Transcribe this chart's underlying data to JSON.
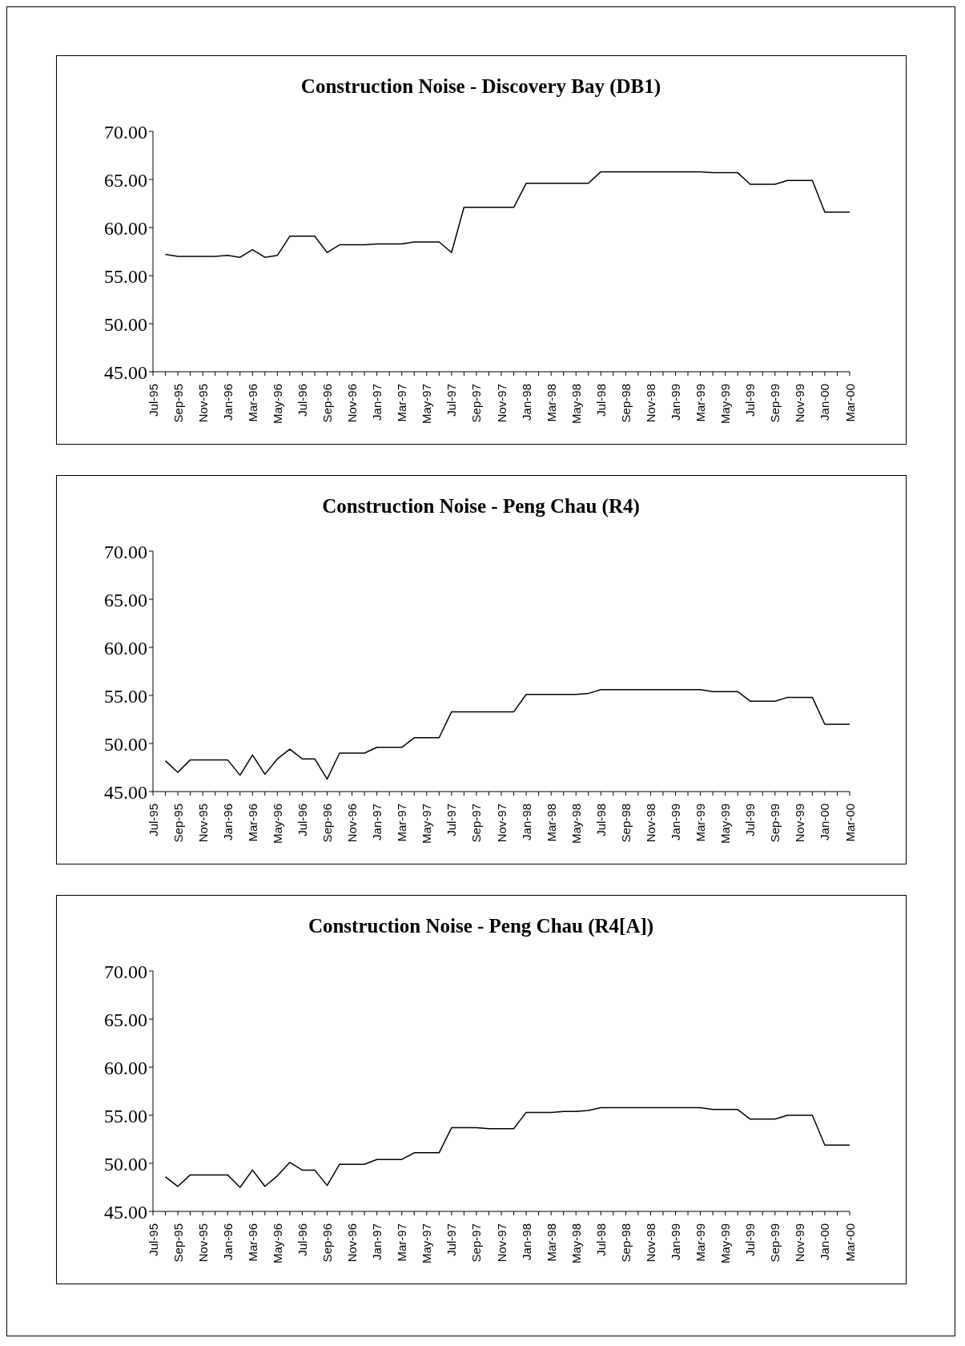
{
  "chart_data": [
    {
      "type": "line",
      "title": "Construction Noise -  Discovery Bay  (DB1)",
      "categories": [
        "Jul-95",
        null,
        "Sep-95",
        null,
        "Nov-95",
        null,
        "Jan-96",
        null,
        "Mar-96",
        null,
        "May-96",
        null,
        "Jul-96",
        null,
        "Sep-96",
        null,
        "Nov-96",
        null,
        "Jan-97",
        null,
        "Mar-97",
        null,
        "May-97",
        null,
        "Jul-97",
        null,
        "Sep-97",
        null,
        "Nov-97",
        null,
        "Jan-98",
        null,
        "Mar-98",
        null,
        "May-98",
        null,
        "Jul-98",
        null,
        "Sep-98",
        null,
        "Nov-98",
        null,
        "Jan-99",
        null,
        "Mar-99",
        null,
        "May-99",
        null,
        "Jul-99",
        null,
        "Sep-99",
        null,
        "Nov-99",
        null,
        "Jan-00",
        null,
        "Mar-00"
      ],
      "values": [
        null,
        57.2,
        57.0,
        57.0,
        57.0,
        57.0,
        57.1,
        56.9,
        57.7,
        56.9,
        57.1,
        59.1,
        59.1,
        59.1,
        57.4,
        58.2,
        58.2,
        58.2,
        58.3,
        58.3,
        58.3,
        58.5,
        58.5,
        58.5,
        57.4,
        62.1,
        62.1,
        62.1,
        62.1,
        62.1,
        64.6,
        64.6,
        64.6,
        64.6,
        64.6,
        64.6,
        65.8,
        65.8,
        65.8,
        65.8,
        65.8,
        65.8,
        65.8,
        65.8,
        65.8,
        65.7,
        65.7,
        65.7,
        64.5,
        64.5,
        64.5,
        64.9,
        64.9,
        64.9,
        61.6,
        61.6,
        61.6
      ],
      "color": "#000000",
      "ylim": [
        45,
        70
      ],
      "yticks": [
        {
          "value": 45,
          "label": "45.00"
        },
        {
          "value": 50,
          "label": "50.00"
        },
        {
          "value": 55,
          "label": "55.00"
        },
        {
          "value": 60,
          "label": "60.00"
        },
        {
          "value": 65,
          "label": "65.00"
        },
        {
          "value": 70,
          "label": "70.00"
        }
      ]
    },
    {
      "type": "line",
      "title": "Construction Noise  - Peng Chau (R4)",
      "categories": [
        "Jul-95",
        null,
        "Sep-95",
        null,
        "Nov-95",
        null,
        "Jan-96",
        null,
        "Mar-96",
        null,
        "May-96",
        null,
        "Jul-96",
        null,
        "Sep-96",
        null,
        "Nov-96",
        null,
        "Jan-97",
        null,
        "Mar-97",
        null,
        "May-97",
        null,
        "Jul-97",
        null,
        "Sep-97",
        null,
        "Nov-97",
        null,
        "Jan-98",
        null,
        "Mar-98",
        null,
        "May-98",
        null,
        "Jul-98",
        null,
        "Sep-98",
        null,
        "Nov-98",
        null,
        "Jan-99",
        null,
        "Mar-99",
        null,
        "May-99",
        null,
        "Jul-99",
        null,
        "Sep-99",
        null,
        "Nov-99",
        null,
        "Jan-00",
        null,
        "Mar-00"
      ],
      "values": [
        null,
        48.2,
        47.0,
        48.3,
        48.3,
        48.3,
        48.3,
        46.7,
        48.8,
        46.8,
        48.4,
        49.4,
        48.4,
        48.4,
        46.3,
        49.0,
        49.0,
        49.0,
        49.6,
        49.6,
        49.6,
        50.6,
        50.6,
        50.6,
        53.3,
        53.3,
        53.3,
        53.3,
        53.3,
        53.3,
        55.1,
        55.1,
        55.1,
        55.1,
        55.1,
        55.2,
        55.6,
        55.6,
        55.6,
        55.6,
        55.6,
        55.6,
        55.6,
        55.6,
        55.6,
        55.4,
        55.4,
        55.4,
        54.4,
        54.4,
        54.4,
        54.8,
        54.8,
        54.8,
        52.0,
        52.0,
        52.0
      ],
      "color": "#000000",
      "ylim": [
        45,
        70
      ],
      "yticks": [
        {
          "value": 45,
          "label": "45.00"
        },
        {
          "value": 50,
          "label": "50.00"
        },
        {
          "value": 55,
          "label": "55.00"
        },
        {
          "value": 60,
          "label": "60.00"
        },
        {
          "value": 65,
          "label": "65.00"
        },
        {
          "value": 70,
          "label": "70.00"
        }
      ]
    },
    {
      "type": "line",
      "title": "Construction Noise - Peng Chau (R4[A])",
      "categories": [
        "Jul-95",
        null,
        "Sep-95",
        null,
        "Nov-95",
        null,
        "Jan-96",
        null,
        "Mar-96",
        null,
        "May-96",
        null,
        "Jul-96",
        null,
        "Sep-96",
        null,
        "Nov-96",
        null,
        "Jan-97",
        null,
        "Mar-97",
        null,
        "May-97",
        null,
        "Jul-97",
        null,
        "Sep-97",
        null,
        "Nov-97",
        null,
        "Jan-98",
        null,
        "Mar-98",
        null,
        "May-98",
        null,
        "Jul-98",
        null,
        "Sep-98",
        null,
        "Nov-98",
        null,
        "Jan-99",
        null,
        "Mar-99",
        null,
        "May-99",
        null,
        "Jul-99",
        null,
        "Sep-99",
        null,
        "Nov-99",
        null,
        "Jan-00",
        null,
        "Mar-00"
      ],
      "values": [
        null,
        48.6,
        47.6,
        48.8,
        48.8,
        48.8,
        48.8,
        47.5,
        49.3,
        47.6,
        48.7,
        50.1,
        49.3,
        49.3,
        47.7,
        49.9,
        49.9,
        49.9,
        50.4,
        50.4,
        50.4,
        51.1,
        51.1,
        51.1,
        53.7,
        53.7,
        53.7,
        53.6,
        53.6,
        53.6,
        55.3,
        55.3,
        55.3,
        55.4,
        55.4,
        55.5,
        55.8,
        55.8,
        55.8,
        55.8,
        55.8,
        55.8,
        55.8,
        55.8,
        55.8,
        55.6,
        55.6,
        55.6,
        54.6,
        54.6,
        54.6,
        55.0,
        55.0,
        55.0,
        51.9,
        51.9,
        51.9
      ],
      "color": "#000000",
      "ylim": [
        45,
        70
      ],
      "yticks": [
        {
          "value": 45,
          "label": "45.00"
        },
        {
          "value": 50,
          "label": "50.00"
        },
        {
          "value": 55,
          "label": "55.00"
        },
        {
          "value": 60,
          "label": "60.00"
        },
        {
          "value": 65,
          "label": "65.00"
        },
        {
          "value": 70,
          "label": "70.00"
        }
      ]
    }
  ]
}
